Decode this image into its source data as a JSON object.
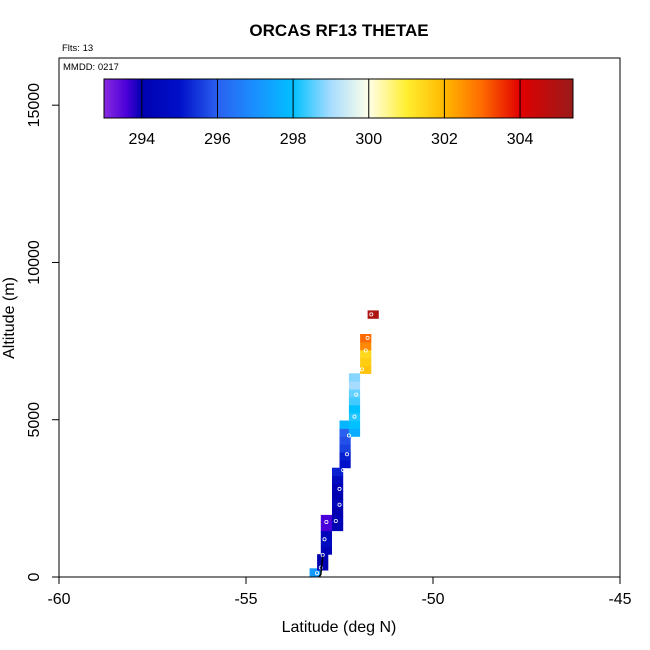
{
  "chart_data": {
    "type": "scatter",
    "title": "ORCAS RF13 THETAE",
    "annotations": {
      "flights": "Flts: 13",
      "date": "MMDD: 0217"
    },
    "xlabel": "Latitude (deg N)",
    "ylabel": "Altitude (m)",
    "xlim": [
      -60,
      -45
    ],
    "ylim": [
      0,
      16500
    ],
    "x_ticks": [
      -60,
      -55,
      -50,
      -45
    ],
    "x_tick_labels": [
      "-60",
      "-55",
      "-50",
      "-45"
    ],
    "y_ticks": [
      0,
      5000,
      10000,
      15000
    ],
    "y_tick_labels": [
      "0",
      "5000",
      "10000",
      "15000"
    ],
    "grid": false,
    "colorbar": {
      "placement": "top-inside",
      "range": [
        293,
        305.4
      ],
      "ticks": [
        294,
        296,
        298,
        300,
        302,
        304
      ],
      "tick_labels": [
        "294",
        "296",
        "298",
        "300",
        "302",
        "304"
      ],
      "stops": [
        {
          "v": 293.0,
          "c": "#8a2be2"
        },
        {
          "v": 293.6,
          "c": "#4a00d8"
        },
        {
          "v": 294.0,
          "c": "#0000b0"
        },
        {
          "v": 295.0,
          "c": "#0010c8"
        },
        {
          "v": 296.0,
          "c": "#2a60f0"
        },
        {
          "v": 297.0,
          "c": "#1a90ff"
        },
        {
          "v": 298.0,
          "c": "#00c0ff"
        },
        {
          "v": 299.0,
          "c": "#a8dcff"
        },
        {
          "v": 300.0,
          "c": "#ffffe8"
        },
        {
          "v": 301.0,
          "c": "#ffee30"
        },
        {
          "v": 302.0,
          "c": "#ffb800"
        },
        {
          "v": 303.0,
          "c": "#ff6a00"
        },
        {
          "v": 304.0,
          "c": "#e00000"
        },
        {
          "v": 305.4,
          "c": "#9a1a1a"
        }
      ]
    },
    "cells": [
      {
        "x": -53.15,
        "y": 150,
        "v": 297.2
      },
      {
        "x": -52.95,
        "y": 350,
        "v": 294.0
      },
      {
        "x": -52.95,
        "y": 600,
        "v": 294.0
      },
      {
        "x": -52.85,
        "y": 850,
        "v": 294.2
      },
      {
        "x": -52.85,
        "y": 1100,
        "v": 294.6
      },
      {
        "x": -52.85,
        "y": 1350,
        "v": 294.4
      },
      {
        "x": -52.85,
        "y": 1600,
        "v": 293.6
      },
      {
        "x": -52.85,
        "y": 1850,
        "v": 293.6
      },
      {
        "x": -52.55,
        "y": 1600,
        "v": 294.2
      },
      {
        "x": -52.55,
        "y": 1850,
        "v": 294.2
      },
      {
        "x": -52.55,
        "y": 2100,
        "v": 294.0
      },
      {
        "x": -52.55,
        "y": 2350,
        "v": 294.4
      },
      {
        "x": -52.55,
        "y": 2600,
        "v": 294.0
      },
      {
        "x": -52.55,
        "y": 2850,
        "v": 294.2
      },
      {
        "x": -52.55,
        "y": 3100,
        "v": 294.6
      },
      {
        "x": -52.55,
        "y": 3350,
        "v": 295.2
      },
      {
        "x": -52.35,
        "y": 3600,
        "v": 295.0
      },
      {
        "x": -52.35,
        "y": 3850,
        "v": 295.2
      },
      {
        "x": -52.35,
        "y": 4100,
        "v": 295.6
      },
      {
        "x": -52.35,
        "y": 4350,
        "v": 295.8
      },
      {
        "x": -52.35,
        "y": 4600,
        "v": 296.0
      },
      {
        "x": -52.35,
        "y": 4850,
        "v": 297.8
      },
      {
        "x": -52.1,
        "y": 4600,
        "v": 297.6
      },
      {
        "x": -52.1,
        "y": 4850,
        "v": 298.0
      },
      {
        "x": -52.1,
        "y": 5100,
        "v": 298.2
      },
      {
        "x": -52.1,
        "y": 5350,
        "v": 298.0
      },
      {
        "x": -52.1,
        "y": 5600,
        "v": 298.4
      },
      {
        "x": -52.1,
        "y": 5850,
        "v": 298.6
      },
      {
        "x": -52.1,
        "y": 6100,
        "v": 299.0
      },
      {
        "x": -52.1,
        "y": 6350,
        "v": 298.8
      },
      {
        "x": -51.8,
        "y": 6600,
        "v": 301.8
      },
      {
        "x": -51.8,
        "y": 6850,
        "v": 301.6
      },
      {
        "x": -51.8,
        "y": 7100,
        "v": 301.4
      },
      {
        "x": -51.8,
        "y": 7350,
        "v": 302.6
      },
      {
        "x": -51.8,
        "y": 7600,
        "v": 303.0
      },
      {
        "x": -51.6,
        "y": 8350,
        "v": 305.0
      }
    ],
    "track": [
      {
        "x": -53.1,
        "y": 120
      },
      {
        "x": -53.0,
        "y": 300
      },
      {
        "x": -52.95,
        "y": 700
      },
      {
        "x": -52.9,
        "y": 1200
      },
      {
        "x": -52.85,
        "y": 1750
      },
      {
        "x": -52.6,
        "y": 1780
      },
      {
        "x": -52.5,
        "y": 2300
      },
      {
        "x": -52.5,
        "y": 2800
      },
      {
        "x": -52.4,
        "y": 3400
      },
      {
        "x": -52.3,
        "y": 3900
      },
      {
        "x": -52.25,
        "y": 4500
      },
      {
        "x": -52.1,
        "y": 5100
      },
      {
        "x": -52.05,
        "y": 5800
      },
      {
        "x": -51.9,
        "y": 6600
      },
      {
        "x": -51.8,
        "y": 7200
      },
      {
        "x": -51.75,
        "y": 7600
      },
      {
        "x": -51.65,
        "y": 8350
      }
    ]
  }
}
